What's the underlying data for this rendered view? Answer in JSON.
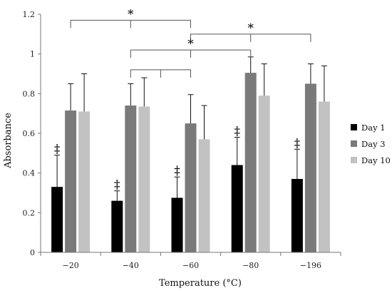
{
  "chart_data": {
    "type": "bar",
    "categories": [
      "−20",
      "−40",
      "−60",
      "−80",
      "−196"
    ],
    "xlabel": "Temperature (°C)",
    "ylabel": "Absorbance",
    "ylim": [
      0,
      1.2
    ],
    "yticks": [
      "0",
      "0.2",
      "0.4",
      "0.6",
      "0.8",
      "1",
      "1.2"
    ],
    "grid": false,
    "legend_position": "right",
    "series": [
      {
        "name": "Day 1",
        "color": "#000000",
        "values": [
          0.33,
          0.26,
          0.275,
          0.44,
          0.37
        ],
        "errors": [
          0.16,
          0.05,
          0.105,
          0.14,
          0.15
        ]
      },
      {
        "name": "Day 3",
        "color": "#7a7a7a",
        "values": [
          0.715,
          0.74,
          0.65,
          0.905,
          0.85
        ],
        "errors": [
          0.135,
          0.11,
          0.145,
          0.08,
          0.1
        ]
      },
      {
        "name": "Day 10",
        "color": "#c2c2c2",
        "values": [
          0.71,
          0.735,
          0.57,
          0.79,
          0.76
        ],
        "errors": [
          0.19,
          0.145,
          0.17,
          0.16,
          0.18
        ]
      }
    ],
    "annotations": {
      "day1_marker": "‡",
      "significance_marker": "*",
      "brackets": [
        {
          "from": 0,
          "to": 2,
          "value": 1.17
        },
        {
          "from": 2,
          "to": 4,
          "value": 1.1
        },
        {
          "from": 1,
          "to": 3,
          "value": 1.02
        },
        {
          "from": 1,
          "to": 2,
          "value": 0.92
        }
      ]
    }
  }
}
